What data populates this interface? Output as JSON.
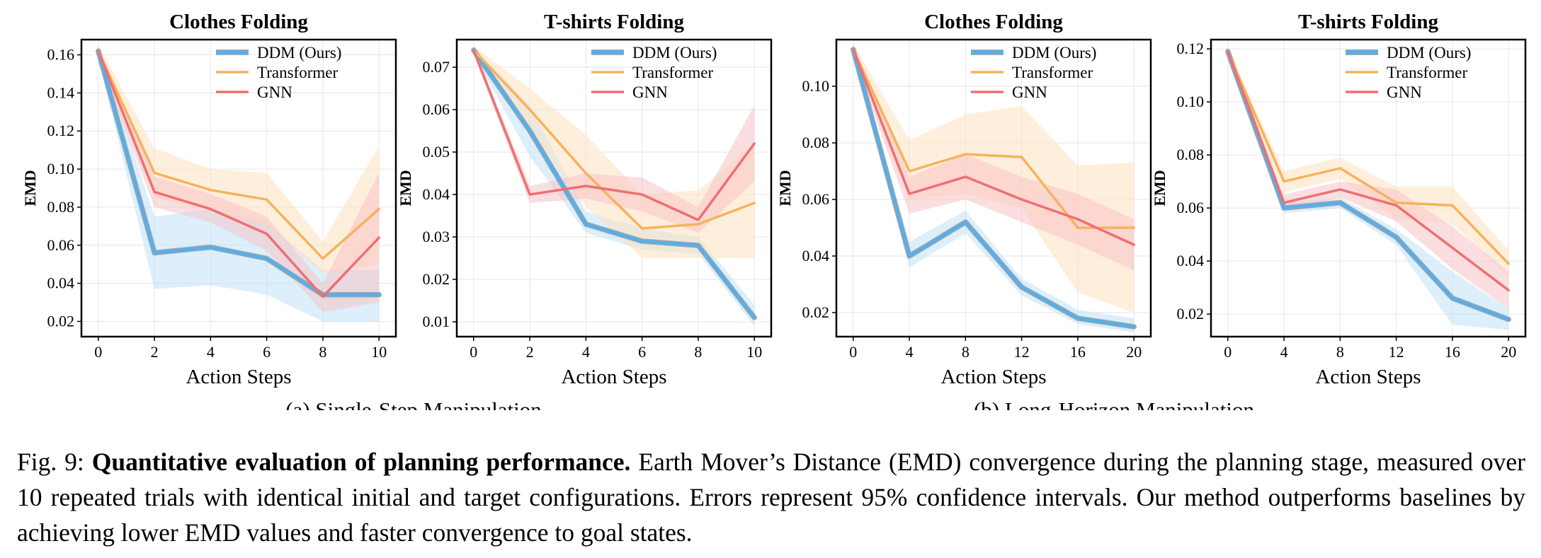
{
  "colors": {
    "ddm": "#5aaee6",
    "ddm_edge": "#a8a8a8",
    "transformer": "#f7b25c",
    "gnn": "#ee6f72",
    "ddm_band": "#bfe1f6",
    "transformer_band": "#fde1bf",
    "gnn_band": "#f7c3c6"
  },
  "group_labels": [
    "(a) Single-Step Manipulation",
    "(b) Long-Horizon Manipulation"
  ],
  "caption": {
    "fig_label": "Fig. 9:",
    "bold": "Quantitative evaluation of planning performance.",
    "text": "Earth Mover’s Distance (EMD) convergence during the planning stage, measured over 10 repeated trials with identical initial and target configurations. Errors represent 95% confidence intervals. Our method outperforms baselines by achieving lower EMD values and faster convergence to goal states."
  },
  "chart_data": [
    {
      "type": "line",
      "title": "Clothes Folding",
      "xlabel": "Action Steps",
      "ylabel": "EMD",
      "x": [
        0,
        2,
        4,
        6,
        8,
        10
      ],
      "xticks": [
        0,
        2,
        4,
        6,
        8,
        10
      ],
      "xlim": [
        -0.6,
        10.6
      ],
      "ylim": [
        0.012,
        0.168
      ],
      "yticks": [
        0.02,
        0.04,
        0.06,
        0.08,
        0.1,
        0.12,
        0.14,
        0.16
      ],
      "yticklabels": [
        "0.02",
        "0.04",
        "0.06",
        "0.08",
        "0.10",
        "0.12",
        "0.14",
        "0.16"
      ],
      "legend": "top-right",
      "series": [
        {
          "name": "DDM (Ours)",
          "key": "ddm",
          "values": [
            0.162,
            0.056,
            0.059,
            0.053,
            0.034,
            0.034
          ],
          "lower": [
            0.158,
            0.037,
            0.039,
            0.034,
            0.02,
            0.02
          ],
          "upper": [
            0.165,
            0.075,
            0.079,
            0.072,
            0.047,
            0.047
          ]
        },
        {
          "name": "Transformer",
          "key": "transformer",
          "values": [
            0.162,
            0.098,
            0.089,
            0.084,
            0.053,
            0.079
          ],
          "lower": [
            0.158,
            0.085,
            0.078,
            0.07,
            0.045,
            0.05
          ],
          "upper": [
            0.165,
            0.111,
            0.1,
            0.098,
            0.062,
            0.112
          ]
        },
        {
          "name": "GNN",
          "key": "gnn",
          "values": [
            0.162,
            0.088,
            0.079,
            0.066,
            0.033,
            0.064
          ],
          "lower": [
            0.158,
            0.08,
            0.072,
            0.057,
            0.025,
            0.03
          ],
          "upper": [
            0.165,
            0.096,
            0.087,
            0.075,
            0.04,
            0.098
          ]
        }
      ]
    },
    {
      "type": "line",
      "title": "T-shirts Folding",
      "xlabel": "Action Steps",
      "ylabel": "EMD",
      "x": [
        0,
        2,
        4,
        6,
        8,
        10
      ],
      "xticks": [
        0,
        2,
        4,
        6,
        8,
        10
      ],
      "xlim": [
        -0.6,
        10.6
      ],
      "ylim": [
        0.0065,
        0.0765
      ],
      "yticks": [
        0.01,
        0.02,
        0.03,
        0.04,
        0.05,
        0.06,
        0.07
      ],
      "yticklabels": [
        "0.01",
        "0.02",
        "0.03",
        "0.04",
        "0.05",
        "0.06",
        "0.07"
      ],
      "legend": "top-right",
      "series": [
        {
          "name": "DDM (Ours)",
          "key": "ddm",
          "values": [
            0.074,
            0.055,
            0.033,
            0.029,
            0.028,
            0.011
          ],
          "lower": [
            0.073,
            0.049,
            0.031,
            0.027,
            0.026,
            0.009
          ],
          "upper": [
            0.075,
            0.061,
            0.036,
            0.032,
            0.03,
            0.014
          ]
        },
        {
          "name": "Transformer",
          "key": "transformer",
          "values": [
            0.074,
            0.06,
            0.045,
            0.032,
            0.033,
            0.038
          ],
          "lower": [
            0.073,
            0.055,
            0.037,
            0.025,
            0.025,
            0.025
          ],
          "upper": [
            0.075,
            0.065,
            0.054,
            0.04,
            0.041,
            0.052
          ]
        },
        {
          "name": "GNN",
          "key": "gnn",
          "values": [
            0.074,
            0.04,
            0.042,
            0.04,
            0.034,
            0.052
          ],
          "lower": [
            0.073,
            0.038,
            0.039,
            0.036,
            0.031,
            0.043
          ],
          "upper": [
            0.075,
            0.042,
            0.045,
            0.044,
            0.037,
            0.061
          ]
        }
      ]
    },
    {
      "type": "line",
      "title": "Clothes Folding",
      "xlabel": "Action Steps",
      "ylabel": "EMD",
      "x": [
        0,
        4,
        8,
        12,
        16,
        20
      ],
      "xticks": [
        0,
        4,
        8,
        12,
        16,
        20
      ],
      "xlim": [
        -1.2,
        21.2
      ],
      "ylim": [
        0.0115,
        0.1165
      ],
      "yticks": [
        0.02,
        0.04,
        0.06,
        0.08,
        0.1
      ],
      "yticklabels": [
        "0.02",
        "0.04",
        "0.06",
        "0.08",
        "0.10"
      ],
      "legend": "top-right",
      "series": [
        {
          "name": "DDM (Ours)",
          "key": "ddm",
          "values": [
            0.113,
            0.04,
            0.052,
            0.029,
            0.018,
            0.015
          ],
          "lower": [
            0.111,
            0.036,
            0.048,
            0.026,
            0.016,
            0.013
          ],
          "upper": [
            0.115,
            0.045,
            0.056,
            0.032,
            0.021,
            0.018
          ]
        },
        {
          "name": "Transformer",
          "key": "transformer",
          "values": [
            0.113,
            0.07,
            0.076,
            0.075,
            0.05,
            0.05
          ],
          "lower": [
            0.111,
            0.06,
            0.062,
            0.057,
            0.027,
            0.02
          ],
          "upper": [
            0.115,
            0.081,
            0.09,
            0.093,
            0.072,
            0.073
          ]
        },
        {
          "name": "GNN",
          "key": "gnn",
          "values": [
            0.113,
            0.062,
            0.068,
            0.06,
            0.053,
            0.044
          ],
          "lower": [
            0.111,
            0.055,
            0.06,
            0.052,
            0.044,
            0.035
          ],
          "upper": [
            0.115,
            0.068,
            0.076,
            0.068,
            0.062,
            0.053
          ]
        }
      ]
    },
    {
      "type": "line",
      "title": "T-shirts Folding",
      "xlabel": "Action Steps",
      "ylabel": "EMD",
      "x": [
        0,
        4,
        8,
        12,
        16,
        20
      ],
      "xticks": [
        0,
        4,
        8,
        12,
        16,
        20
      ],
      "xlim": [
        -1.2,
        21.2
      ],
      "ylim": [
        0.0115,
        0.1235
      ],
      "yticks": [
        0.02,
        0.04,
        0.06,
        0.08,
        0.1,
        0.12
      ],
      "yticklabels": [
        "0.02",
        "0.04",
        "0.06",
        "0.08",
        "0.10",
        "0.12"
      ],
      "legend": "top-right",
      "series": [
        {
          "name": "DDM (Ours)",
          "key": "ddm",
          "values": [
            0.119,
            0.06,
            0.062,
            0.049,
            0.026,
            0.018
          ],
          "lower": [
            0.117,
            0.058,
            0.06,
            0.046,
            0.016,
            0.014
          ],
          "upper": [
            0.12,
            0.062,
            0.064,
            0.052,
            0.036,
            0.022
          ]
        },
        {
          "name": "Transformer",
          "key": "transformer",
          "values": [
            0.119,
            0.07,
            0.075,
            0.062,
            0.061,
            0.039
          ],
          "lower": [
            0.117,
            0.066,
            0.071,
            0.056,
            0.054,
            0.034
          ],
          "upper": [
            0.12,
            0.074,
            0.079,
            0.068,
            0.068,
            0.044
          ]
        },
        {
          "name": "GNN",
          "key": "gnn",
          "values": [
            0.119,
            0.062,
            0.067,
            0.061,
            0.045,
            0.029
          ],
          "lower": [
            0.117,
            0.059,
            0.064,
            0.055,
            0.037,
            0.022
          ],
          "upper": [
            0.12,
            0.065,
            0.07,
            0.067,
            0.053,
            0.036
          ]
        }
      ]
    }
  ]
}
